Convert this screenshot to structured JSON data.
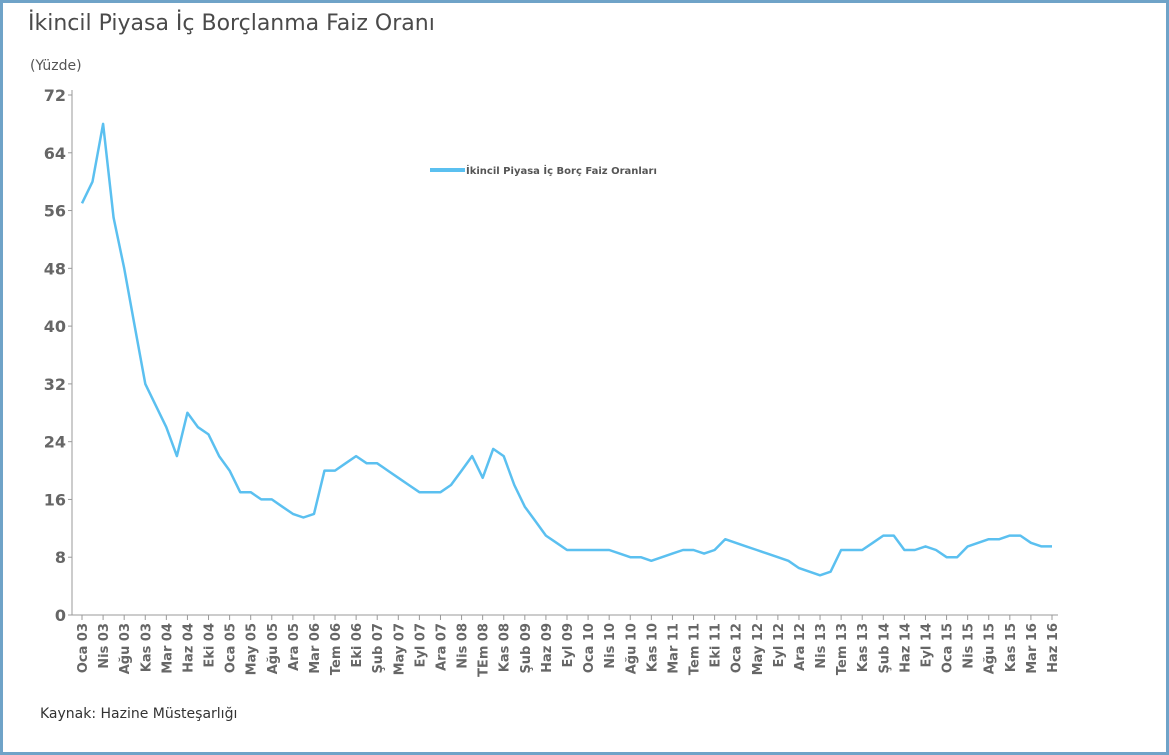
{
  "chart_data": {
    "type": "line",
    "title": "İkincil Piyasa İç Borçlanma Faiz Oranı",
    "subtitle": "(Yüzde)",
    "source": "Kaynak: Hazine Müsteşarlığı",
    "categories": [
      "Oca 03",
      null,
      "Nis 03",
      null,
      "Ağu 03",
      null,
      "Kas 03",
      null,
      "Mar 04",
      null,
      "Haz 04",
      null,
      "Eki 04",
      null,
      "Oca 05",
      null,
      "May 05",
      null,
      "Ağu 05",
      null,
      "Ara 05",
      null,
      "Mar 06",
      null,
      "Tem 06",
      null,
      "Eki 06",
      null,
      "Şub 07",
      null,
      "May 07",
      null,
      "Eyl 07",
      null,
      "Ara 07",
      null,
      "Nis 08",
      null,
      "TEm 08",
      null,
      "Kas 08",
      null,
      "Şub 09",
      null,
      "Haz 09",
      null,
      "Eyl 09",
      null,
      "Oca 10",
      null,
      "Nis 10",
      null,
      "Ağu 10",
      null,
      "Kas 10",
      null,
      "Mar 11",
      null,
      "Tem 11",
      null,
      "Eki 11",
      null,
      "Oca 12",
      null,
      "May 12",
      null,
      "Eyl 12",
      null,
      "Ara 12",
      null,
      "Nis 13",
      null,
      "Tem 13",
      null,
      "Kas 13",
      null,
      "Şub 14",
      null,
      "Haz 14",
      null,
      "Eyl 14",
      null,
      "Oca 15",
      null,
      "Nis 15",
      null,
      "Ağu 15",
      null,
      "Kas 15",
      null,
      "Mar 16",
      null,
      "Haz 16"
    ],
    "series": [
      {
        "name": "İkincil Piyasa İç Borç Faiz Oranları",
        "color": "#5bc0f0",
        "values": [
          57,
          60,
          68,
          55,
          48,
          40,
          32,
          29,
          26,
          22,
          28,
          26,
          25,
          22,
          20,
          17,
          17,
          16,
          16,
          15,
          14,
          13.5,
          14,
          20,
          20,
          21,
          22,
          21,
          21,
          20,
          19,
          18,
          17,
          17,
          17,
          18,
          20,
          22,
          19,
          23,
          22,
          18,
          15,
          13,
          11,
          10,
          9,
          9,
          9,
          9,
          9,
          8.5,
          8,
          8,
          7.5,
          8,
          8.5,
          9,
          9,
          8.5,
          9,
          10.5,
          10,
          9.5,
          9,
          8.5,
          8,
          7.5,
          6.5,
          6,
          5.5,
          6,
          9,
          9,
          9,
          10,
          11,
          11,
          9,
          9,
          9.5,
          9,
          8,
          8,
          9.5,
          10,
          10.5,
          10.5,
          11,
          11,
          10,
          9.5,
          9.5
        ]
      }
    ],
    "ylim": [
      0,
      72
    ],
    "yticks": [
      0,
      8,
      16,
      24,
      32,
      40,
      48,
      56,
      64,
      72
    ],
    "legend": "top"
  }
}
